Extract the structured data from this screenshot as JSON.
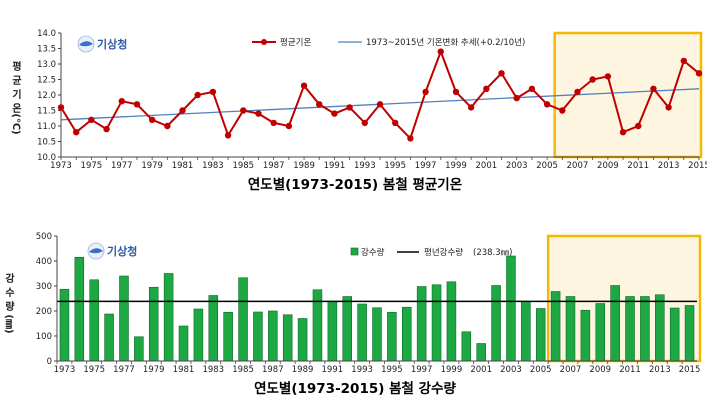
{
  "logo_text": "기상청",
  "chart_data": [
    {
      "type": "line",
      "caption": "연도별(1973-2015)  봄철  평균기온",
      "ylabel": [
        "평",
        "균",
        "기",
        "온",
        "(℃)"
      ],
      "ylim": [
        10.0,
        14.0
      ],
      "yticks": [
        "10.0",
        "10.5",
        "11.0",
        "11.5",
        "12.0",
        "12.5",
        "13.0",
        "13.5",
        "14.0"
      ],
      "xtick_labels": [
        "1973",
        "1975",
        "1977",
        "1979",
        "1981",
        "1983",
        "1985",
        "1987",
        "1989",
        "1991",
        "1993",
        "1995",
        "1997",
        "1999",
        "2001",
        "2003",
        "2005",
        "2007",
        "2009",
        "2011",
        "2013",
        "2015"
      ],
      "legend": [
        "평균기온",
        "1973~2015년 기온변화 추세(+0.2/10년)"
      ],
      "x": [
        1973,
        1974,
        1975,
        1976,
        1977,
        1978,
        1979,
        1980,
        1981,
        1982,
        1983,
        1984,
        1985,
        1986,
        1987,
        1988,
        1989,
        1990,
        1991,
        1992,
        1993,
        1994,
        1995,
        1996,
        1997,
        1998,
        1999,
        2000,
        2001,
        2002,
        2003,
        2004,
        2005,
        2006,
        2007,
        2008,
        2009,
        2010,
        2011,
        2012,
        2013,
        2014,
        2015
      ],
      "series": [
        {
          "name": "평균기온",
          "color": "#c00000",
          "values": [
            11.6,
            10.8,
            11.2,
            10.9,
            11.8,
            11.7,
            11.2,
            11.0,
            11.5,
            12.0,
            12.1,
            10.7,
            11.5,
            11.4,
            11.1,
            11.0,
            12.3,
            11.7,
            11.4,
            11.6,
            11.1,
            11.7,
            11.1,
            10.6,
            12.1,
            13.4,
            12.1,
            11.6,
            12.2,
            12.7,
            11.9,
            12.2,
            11.7,
            11.5,
            12.1,
            12.5,
            12.6,
            10.8,
            11.0,
            12.2,
            11.6,
            13.1,
            12.7
          ]
        },
        {
          "name": "1973~2015년 기온변화 추세(+0.2/10년)",
          "color": "#4f81bd",
          "trend": [
            11.2,
            12.2
          ]
        }
      ],
      "highlight_from": 2006,
      "grid": false
    },
    {
      "type": "bar",
      "caption": "연도별(1973-2015)  봄철  강수량",
      "ylabel": [
        "강",
        "수",
        "량",
        "(㎜)"
      ],
      "ylim": [
        0,
        500
      ],
      "yticks": [
        "0",
        "100",
        "200",
        "300",
        "400",
        "500"
      ],
      "xtick_labels": [
        "1973",
        "1975",
        "1977",
        "1979",
        "1981",
        "1983",
        "1985",
        "1987",
        "1989",
        "1991",
        "1993",
        "1995",
        "1997",
        "1999",
        "2001",
        "2003",
        "2005",
        "2007",
        "2009",
        "2011",
        "2013",
        "2015"
      ],
      "legend": [
        "강수량",
        "평년강수량",
        "(238.3㎜)"
      ],
      "x": [
        1973,
        1974,
        1975,
        1976,
        1977,
        1978,
        1979,
        1980,
        1981,
        1982,
        1983,
        1984,
        1985,
        1986,
        1987,
        1988,
        1989,
        1990,
        1991,
        1992,
        1993,
        1994,
        1995,
        1996,
        1997,
        1998,
        1999,
        2000,
        2001,
        2002,
        2003,
        2004,
        2005,
        2006,
        2007,
        2008,
        2009,
        2010,
        2011,
        2012,
        2013,
        2014,
        2015
      ],
      "series": [
        {
          "name": "강수량",
          "color": "#1ea843",
          "values": [
            287,
            415,
            325,
            188,
            340,
            97,
            295,
            350,
            140,
            208,
            262,
            195,
            333,
            196,
            200,
            185,
            170,
            285,
            238,
            258,
            228,
            213,
            195,
            215,
            298,
            305,
            317,
            117,
            70,
            302,
            420,
            238,
            210,
            278,
            258,
            203,
            230,
            302,
            258,
            258,
            265,
            212,
            222
          ]
        },
        {
          "name": "평년강수량",
          "color": "#000000",
          "normal": 238.3
        }
      ],
      "highlight_from": 2006,
      "grid": false
    }
  ]
}
